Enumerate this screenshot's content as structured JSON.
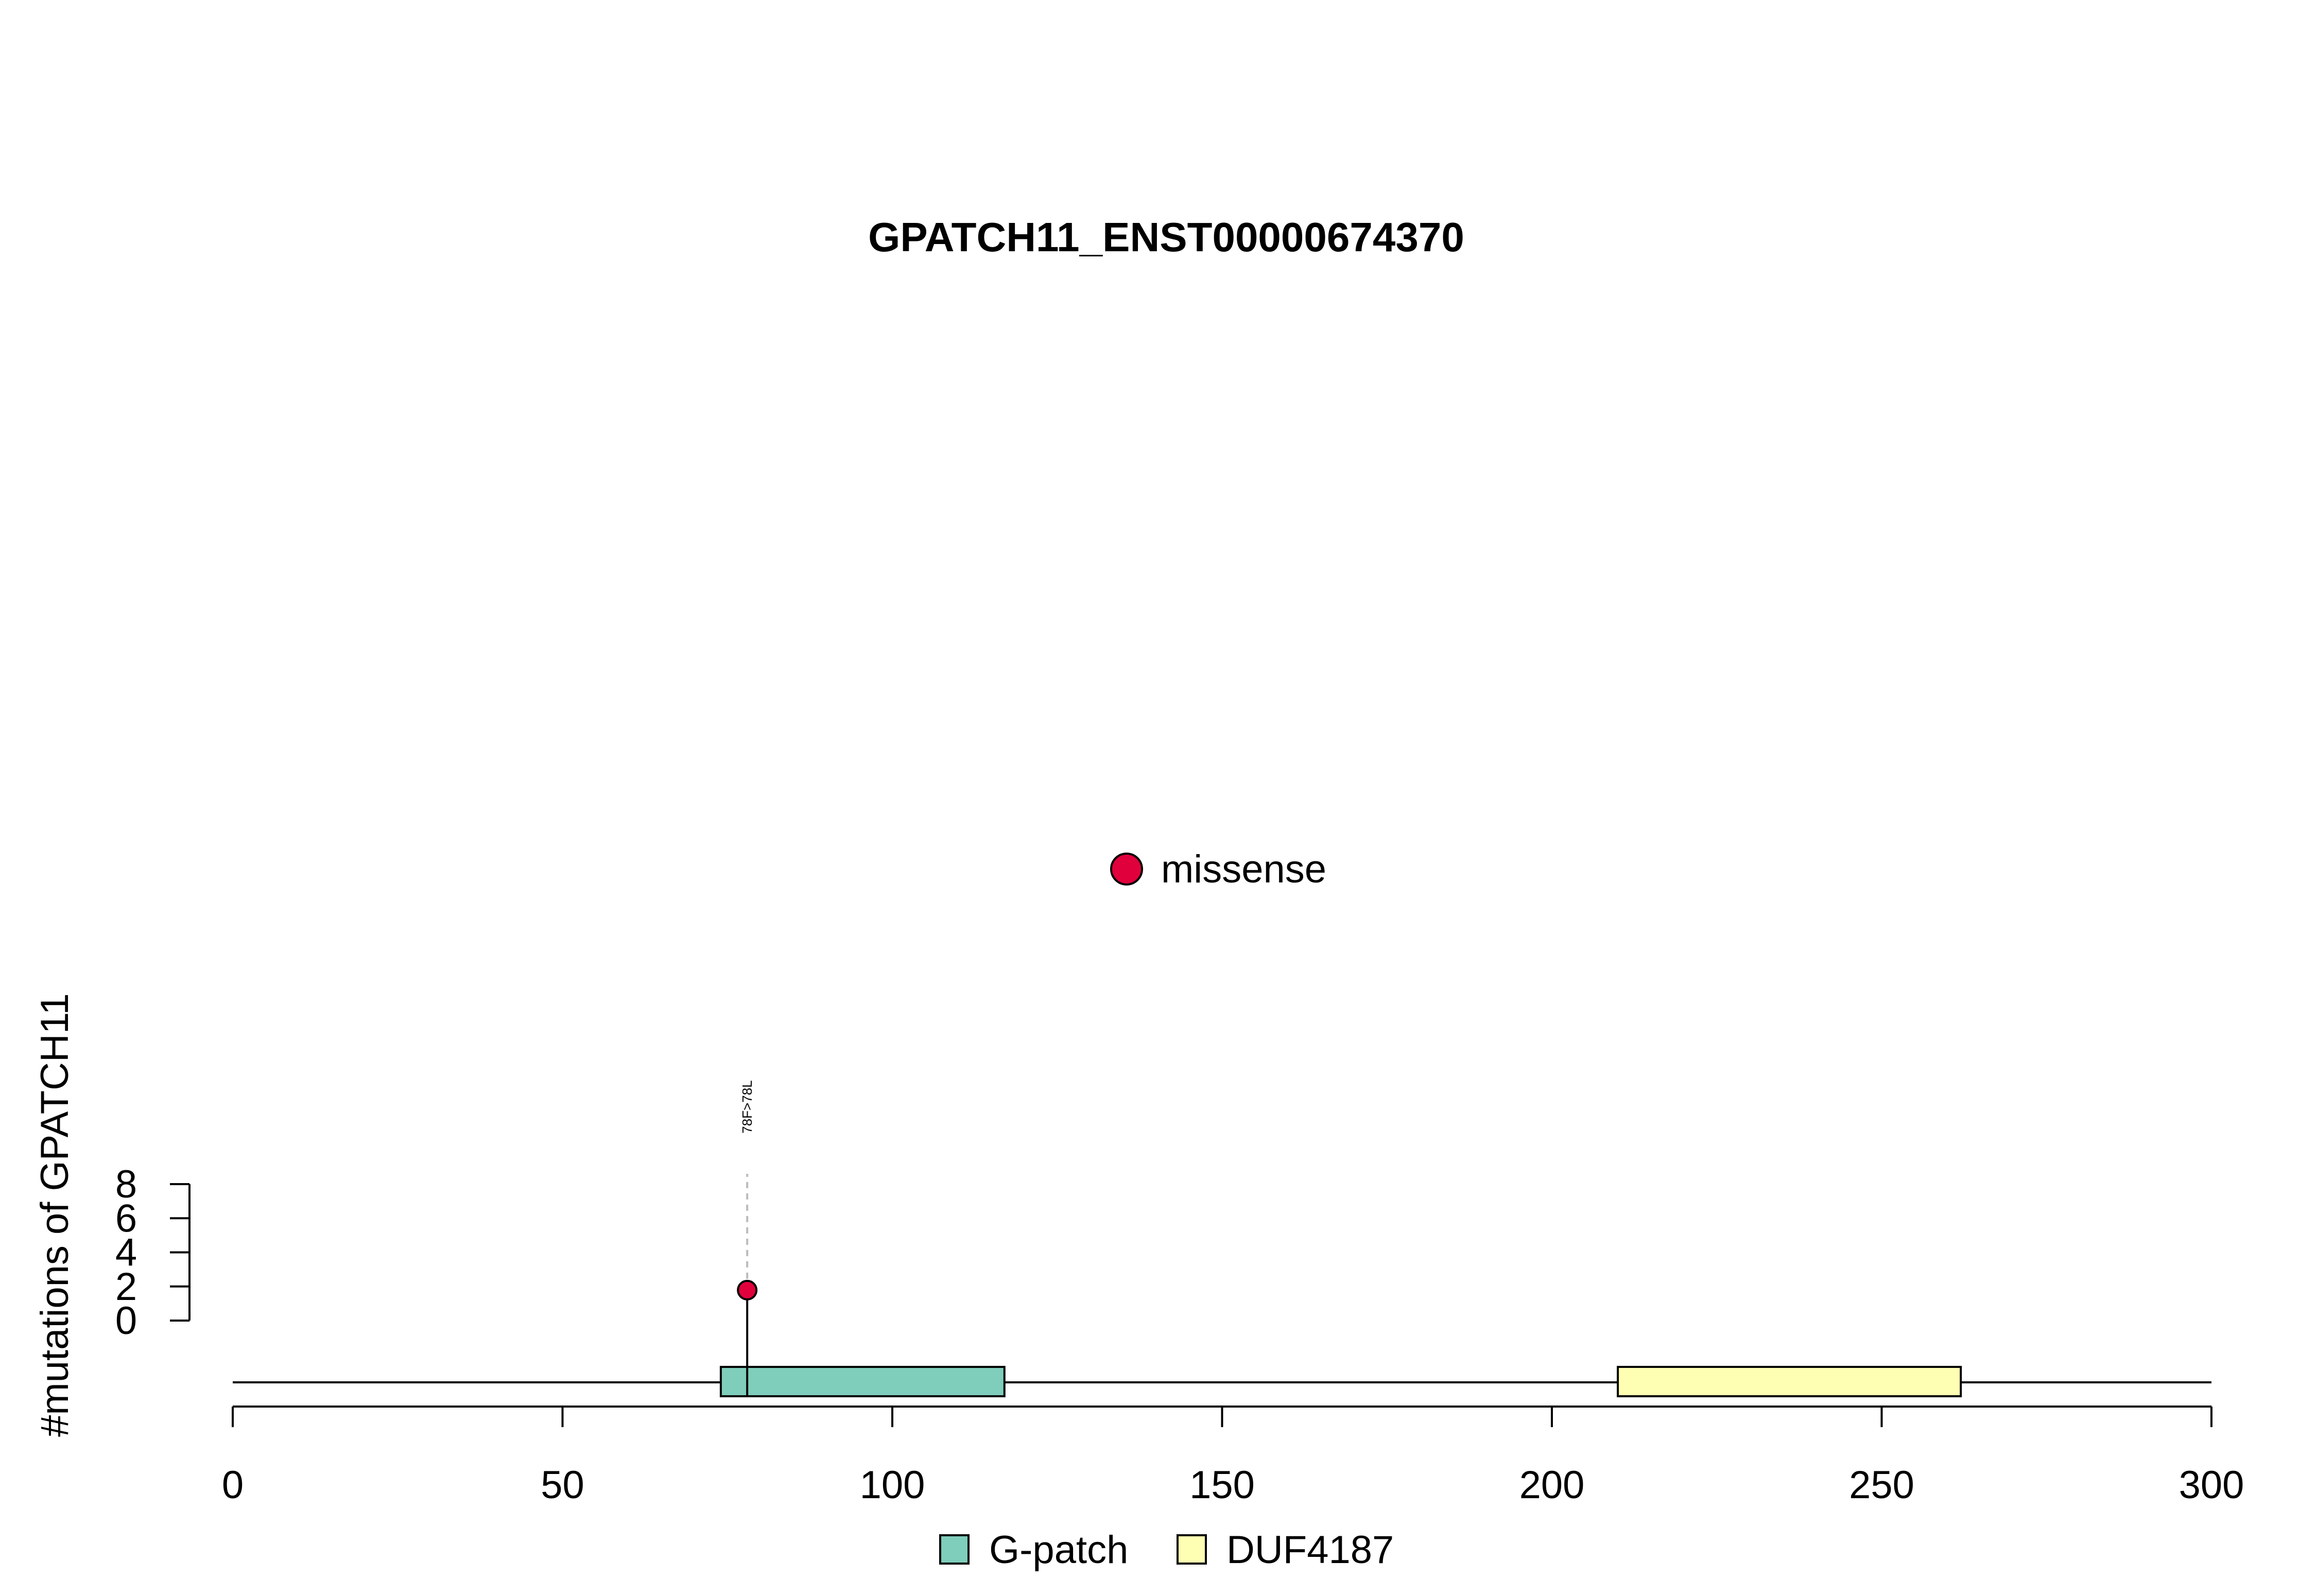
{
  "chart_data": {
    "type": "lollipop",
    "title": "GPATCH11_ENST00000674370",
    "ylabel": "#mutations of GPATCH11",
    "xlim": [
      0,
      300
    ],
    "ylim": [
      0,
      8
    ],
    "x_ticks": [
      0,
      50,
      100,
      150,
      200,
      250,
      300
    ],
    "y_ticks": [
      0,
      2,
      4,
      6,
      8
    ],
    "protein_length": 300,
    "mutations": [
      {
        "position": 78,
        "count": 1,
        "label": "78F>78L",
        "type": "missense"
      }
    ],
    "domains": [
      {
        "name": "G-patch",
        "start": 74,
        "end": 117,
        "color": "#7FCDBB"
      },
      {
        "name": "DUF4187",
        "start": 210,
        "end": 262,
        "color": "#FFFFB3"
      }
    ],
    "mutation_legend": [
      {
        "label": "missense",
        "color": "#E0003C"
      }
    ],
    "domain_legend": [
      {
        "label": "G-patch",
        "color": "#7FCDBB"
      },
      {
        "label": "DUF4187",
        "color": "#FFFFB3"
      }
    ]
  }
}
